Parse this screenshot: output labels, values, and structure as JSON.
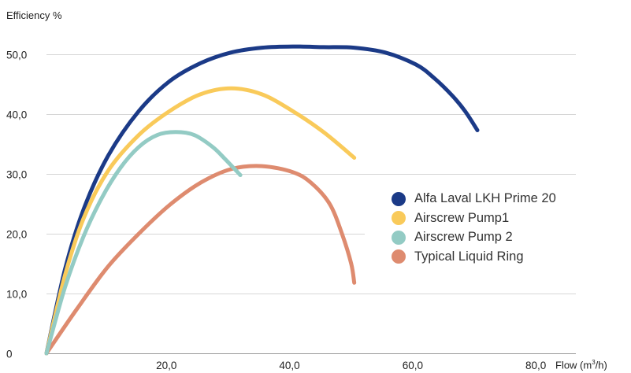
{
  "chart_data": {
    "type": "line",
    "title": "",
    "ylabel": "Efficiency %",
    "xlabel_main": "Flow (m",
    "xlabel_sup": "3",
    "xlabel_end": "/h)",
    "xlim": [
      0,
      86
    ],
    "ylim": [
      0,
      55
    ],
    "x_ticks": [
      20,
      40,
      60,
      80
    ],
    "x_tick_labels": [
      "20,0",
      "40,0",
      "60,0",
      "80,0"
    ],
    "y_ticks": [
      0,
      10,
      20,
      30,
      40,
      50
    ],
    "y_tick_labels": [
      "0",
      "10,0",
      "20,0",
      "30,0",
      "40,0",
      "50,0"
    ],
    "grid": "horizontal",
    "legend_position": "right",
    "series": [
      {
        "name": "Alfa Laval LKH Prime 20",
        "color": "#1b3a87",
        "x": [
          0,
          3,
          6,
          10,
          15,
          20,
          25,
          30,
          35,
          40,
          45,
          50,
          55,
          60,
          63,
          66,
          68,
          70
        ],
        "y": [
          0,
          14,
          24,
          33,
          40.5,
          45.5,
          48.5,
          50.3,
          51.1,
          51.3,
          51.2,
          51.1,
          50.3,
          48.3,
          46,
          43,
          40.5,
          37.3
        ]
      },
      {
        "name": "Airscrew Pump1",
        "color": "#f9ca5a",
        "x": [
          0,
          3,
          6,
          10,
          15,
          20,
          25,
          30,
          35,
          40,
          45,
          50
        ],
        "y": [
          0,
          13,
          22.5,
          30.5,
          36.5,
          40.5,
          43.3,
          44.3,
          43.3,
          40.5,
          37,
          32.7
        ]
      },
      {
        "name": "Airscrew Pump 2",
        "color": "#93cbc4",
        "x": [
          0,
          3,
          6,
          9,
          12,
          15,
          18,
          21,
          24,
          27,
          29,
          31.5
        ],
        "y": [
          0,
          11,
          19.5,
          26,
          31,
          34.5,
          36.5,
          37,
          36.5,
          34.5,
          32.5,
          29.8
        ]
      },
      {
        "name": "Typical Liquid Ring",
        "color": "#de8b6f",
        "x": [
          0,
          5,
          10,
          15,
          20,
          25,
          30,
          35,
          40,
          43,
          46,
          48,
          49.5,
          50
        ],
        "y": [
          0,
          7.5,
          14.5,
          20,
          24.8,
          28.5,
          30.8,
          31.3,
          30.3,
          28.5,
          25,
          20,
          15,
          11.8
        ]
      }
    ]
  }
}
